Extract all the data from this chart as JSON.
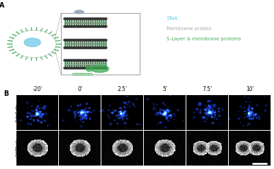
{
  "panel_A_label": "A",
  "panel_B_label": "B",
  "legend_items": [
    {
      "text": "DNA",
      "color": "#5bc8e8"
    },
    {
      "text": "Membrane probes",
      "color": "#a8a8a8"
    },
    {
      "text": "S-Layer & membrane proteins",
      "color": "#4aaa5a"
    }
  ],
  "time_labels": [
    "-20’",
    "0’",
    "2.5’",
    "5’",
    "7.5’",
    "10’"
  ],
  "row_labels": [
    "SybrSafe",
    "CellMask"
  ],
  "background_color": "#ffffff",
  "fig_width": 4.0,
  "fig_height": 2.47,
  "dpi": 100
}
